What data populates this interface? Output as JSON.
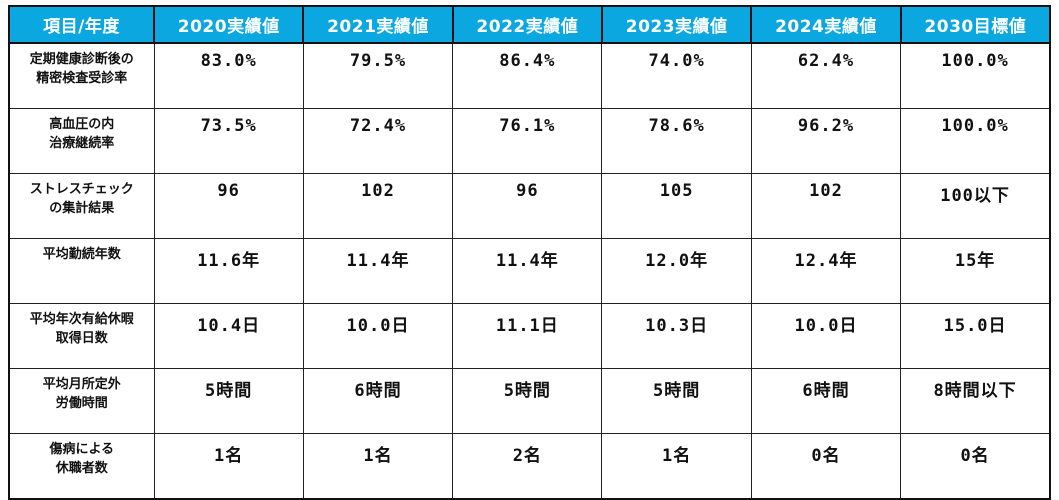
{
  "colors": {
    "header_bg": "#0aa7e0",
    "header_text": "#ffffff",
    "border": "#111111",
    "body_text": "#111111"
  },
  "table": {
    "header": {
      "item_label": "項目/年度",
      "columns": [
        "2020実績値",
        "2021実績値",
        "2022実績値",
        "2023実績値",
        "2024実績値",
        "2030目標値"
      ]
    },
    "rows": [
      {
        "label": "定期健康診断後の\n精密検査受診率",
        "values": [
          "83.0%",
          "79.5%",
          "86.4%",
          "74.0%",
          "62.4%",
          "100.0%"
        ]
      },
      {
        "label": "高血圧の内\n治療継続率",
        "values": [
          "73.5%",
          "72.4%",
          "76.1%",
          "78.6%",
          "96.2%",
          "100.0%"
        ]
      },
      {
        "label": "ストレスチェック\nの集計結果",
        "values": [
          "96",
          "102",
          "96",
          "105",
          "102",
          "100以下"
        ]
      },
      {
        "label": "平均勤続年数",
        "values": [
          "11.6年",
          "11.4年",
          "11.4年",
          "12.0年",
          "12.4年",
          "15年"
        ]
      },
      {
        "label": "平均年次有給休暇\n取得日数",
        "values": [
          "10.4日",
          "10.0日",
          "11.1日",
          "10.3日",
          "10.0日",
          "15.0日"
        ]
      },
      {
        "label": "平均月所定外\n労働時間",
        "values": [
          "5時間",
          "6時間",
          "5時間",
          "5時間",
          "6時間",
          "8時間以下"
        ]
      },
      {
        "label": "傷病による\n休職者数",
        "values": [
          "1名",
          "1名",
          "2名",
          "1名",
          "0名",
          "0名"
        ]
      }
    ]
  },
  "chart_data": {
    "type": "table",
    "title": "",
    "columns": [
      "項目/年度",
      "2020実績値",
      "2021実績値",
      "2022実績値",
      "2023実績値",
      "2024実績値",
      "2030目標値"
    ],
    "rows": [
      [
        "定期健康診断後の精密検査受診率",
        "83.0%",
        "79.5%",
        "86.4%",
        "74.0%",
        "62.4%",
        "100.0%"
      ],
      [
        "高血圧の内治療継続率",
        "73.5%",
        "72.4%",
        "76.1%",
        "78.6%",
        "96.2%",
        "100.0%"
      ],
      [
        "ストレスチェックの集計結果",
        "96",
        "102",
        "96",
        "105",
        "102",
        "100以下"
      ],
      [
        "平均勤続年数",
        "11.6年",
        "11.4年",
        "11.4年",
        "12.0年",
        "12.4年",
        "15年"
      ],
      [
        "平均年次有給休暇取得日数",
        "10.4日",
        "10.0日",
        "11.1日",
        "10.3日",
        "10.0日",
        "15.0日"
      ],
      [
        "平均月所定外労働時間",
        "5時間",
        "6時間",
        "5時間",
        "5時間",
        "6時間",
        "8時間以下"
      ],
      [
        "傷病による休職者数",
        "1名",
        "1名",
        "2名",
        "1名",
        "0名",
        "0名"
      ]
    ]
  }
}
